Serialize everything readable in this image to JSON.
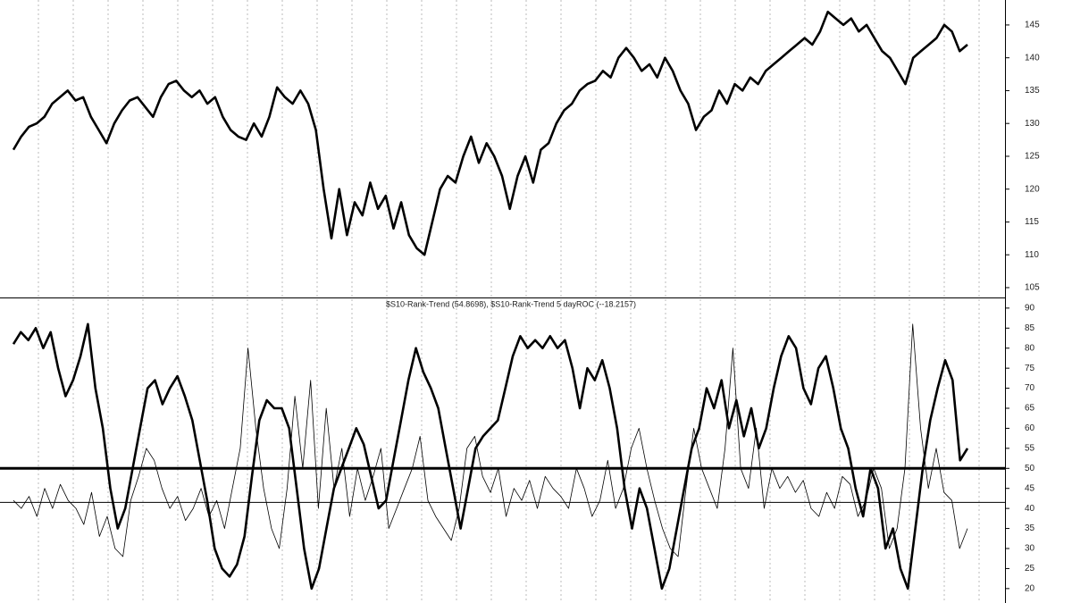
{
  "chart_data": [
    {
      "type": "line",
      "ylim": [
        103.5,
        148.8
      ],
      "yticks": [
        105,
        110,
        115,
        120,
        125,
        130,
        135,
        140,
        145
      ],
      "series": [
        {
          "color": "#000000",
          "width": 2.6,
          "values": [
            126,
            128,
            129.5,
            130,
            131,
            133,
            134,
            135,
            133.5,
            134,
            131,
            129,
            127,
            130,
            132,
            133.5,
            134,
            132.5,
            131,
            134,
            136,
            136.5,
            135,
            134,
            135,
            133,
            134,
            131,
            129,
            128,
            127.5,
            130,
            128,
            131,
            135.5,
            134,
            133,
            135,
            133,
            129,
            120,
            112.5,
            120,
            113,
            118,
            116,
            121,
            117,
            119,
            114,
            118,
            113,
            111,
            110,
            115,
            120,
            122,
            121,
            125,
            128,
            124,
            127,
            125,
            122,
            117,
            122,
            125,
            121,
            126,
            127,
            130,
            132,
            133,
            135,
            136,
            136.5,
            138,
            137,
            140,
            141.5,
            140,
            138,
            139,
            137,
            140,
            138,
            135,
            133,
            129,
            131,
            132,
            135,
            133,
            136,
            135,
            137,
            136,
            138,
            139,
            140,
            141,
            142,
            143,
            142,
            144,
            147,
            146,
            145,
            146,
            144,
            145,
            143,
            141,
            140,
            138,
            136,
            140,
            141,
            142,
            143,
            145,
            144,
            141,
            142
          ]
        }
      ]
    },
    {
      "type": "line",
      "title": "$S10-Rank-Trend (54.8698), $S10-Rank-Trend 5 dayROC (--18.2157)",
      "ylim": [
        16.4,
        92.2
      ],
      "yticks": [
        20,
        25,
        30,
        35,
        40,
        45,
        50,
        55,
        60,
        65,
        70,
        75,
        80,
        85,
        90
      ],
      "reference_lines": [
        {
          "value": 50,
          "width": 3
        },
        {
          "value": 41.5,
          "width": 1
        }
      ],
      "series": [
        {
          "color": "#000000",
          "width": 2.6,
          "values": [
            81,
            84,
            82,
            85,
            80,
            84,
            75,
            68,
            72,
            78,
            86,
            70,
            60,
            45,
            35,
            40,
            50,
            60,
            70,
            72,
            66,
            70,
            73,
            68,
            62,
            52,
            42,
            30,
            25,
            23,
            26,
            33,
            48,
            62,
            67,
            65,
            65,
            60,
            45,
            30,
            20,
            25,
            35,
            45,
            50,
            55,
            60,
            56,
            48,
            40,
            42,
            52,
            62,
            72,
            80,
            74,
            70,
            65,
            55,
            45,
            35,
            45,
            55,
            58,
            60,
            62,
            70,
            78,
            83,
            80,
            82,
            80,
            83,
            80,
            82,
            75,
            65,
            75,
            72,
            77,
            70,
            60,
            45,
            35,
            45,
            40,
            30,
            20,
            25,
            35,
            45,
            55,
            60,
            70,
            65,
            72,
            60,
            67,
            58,
            65,
            55,
            60,
            70,
            78,
            83,
            80,
            70,
            66,
            75,
            78,
            70,
            60,
            55,
            45,
            38,
            50,
            45,
            30,
            35,
            25,
            20,
            35,
            50,
            62,
            70,
            77,
            72,
            52,
            55
          ]
        },
        {
          "color": "#000000",
          "width": 0.8,
          "values": [
            42,
            40,
            43,
            38,
            45,
            40,
            46,
            42,
            40,
            36,
            44,
            33,
            38,
            30,
            28,
            42,
            48,
            55,
            52,
            45,
            40,
            43,
            37,
            40,
            45,
            38,
            42,
            35,
            45,
            55,
            80,
            60,
            45,
            35,
            30,
            45,
            68,
            50,
            72,
            40,
            65,
            45,
            55,
            38,
            50,
            42,
            48,
            55,
            35,
            40,
            45,
            50,
            58,
            42,
            38,
            35,
            32,
            40,
            55,
            58,
            48,
            44,
            50,
            38,
            45,
            42,
            47,
            40,
            48,
            45,
            43,
            40,
            50,
            45,
            38,
            42,
            52,
            40,
            45,
            55,
            60,
            50,
            42,
            35,
            30,
            28,
            45,
            60,
            50,
            45,
            40,
            55,
            80,
            50,
            45,
            60,
            40,
            50,
            45,
            48,
            44,
            47,
            40,
            38,
            44,
            40,
            48,
            46,
            38,
            42,
            50,
            45,
            30,
            35,
            50,
            86,
            60,
            45,
            55,
            44,
            42,
            30,
            35
          ]
        }
      ]
    }
  ]
}
